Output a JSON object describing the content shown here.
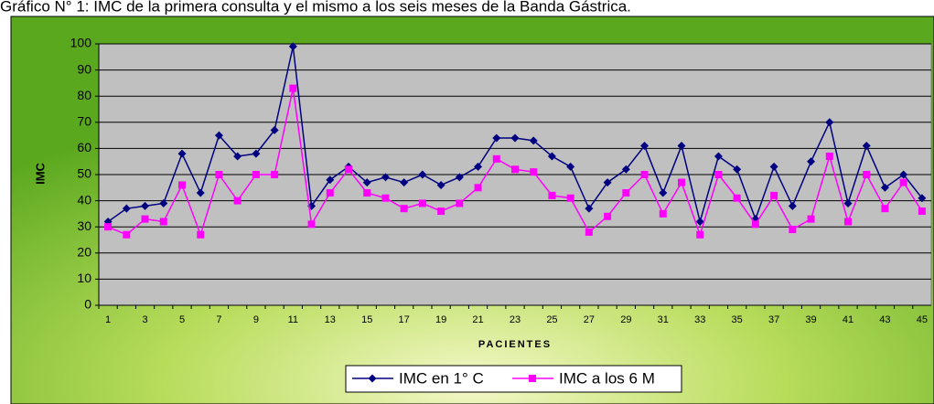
{
  "chart_data": {
    "type": "line",
    "title": "Gráfico N° 1: IMC de la primera consulta y el mismo a los seis meses de la Banda Gástrica.",
    "y_label": "IMC",
    "x_label": "PACIENTES",
    "categories": [
      1,
      null,
      3,
      null,
      5,
      null,
      7,
      null,
      9,
      null,
      11,
      null,
      13,
      null,
      15,
      null,
      17,
      null,
      19,
      null,
      21,
      null,
      23,
      null,
      25,
      null,
      27,
      null,
      29,
      null,
      31,
      null,
      33,
      null,
      35,
      null,
      37,
      null,
      39,
      null,
      41,
      null,
      43,
      null,
      45
    ],
    "series": [
      {
        "name": "IMC en 1° C",
        "color": "#000080",
        "marker": "diamond",
        "values": [
          32,
          37,
          38,
          39,
          58,
          43,
          65,
          57,
          58,
          67,
          99,
          38,
          48,
          53,
          47,
          49,
          47,
          50,
          46,
          49,
          53,
          64,
          64,
          63,
          57,
          53,
          37,
          47,
          52,
          61,
          43,
          61,
          32,
          57,
          52,
          33,
          53,
          38,
          55,
          70,
          39,
          61,
          45,
          50,
          41
        ]
      },
      {
        "name": "IMC a los 6 M",
        "color": "#ff00ff",
        "marker": "square",
        "values": [
          30,
          27,
          33,
          32,
          46,
          27,
          50,
          40,
          50,
          50,
          83,
          31,
          43,
          52,
          43,
          41,
          37,
          39,
          36,
          39,
          45,
          56,
          52,
          51,
          42,
          41,
          28,
          34,
          43,
          50,
          35,
          47,
          27,
          50,
          41,
          31,
          42,
          29,
          33,
          57,
          32,
          50,
          37,
          47,
          36
        ]
      }
    ],
    "ylim": [
      0,
      100
    ],
    "yticks": [
      0,
      10,
      20,
      30,
      40,
      50,
      60,
      70,
      80,
      90,
      100
    ],
    "grid": true
  }
}
